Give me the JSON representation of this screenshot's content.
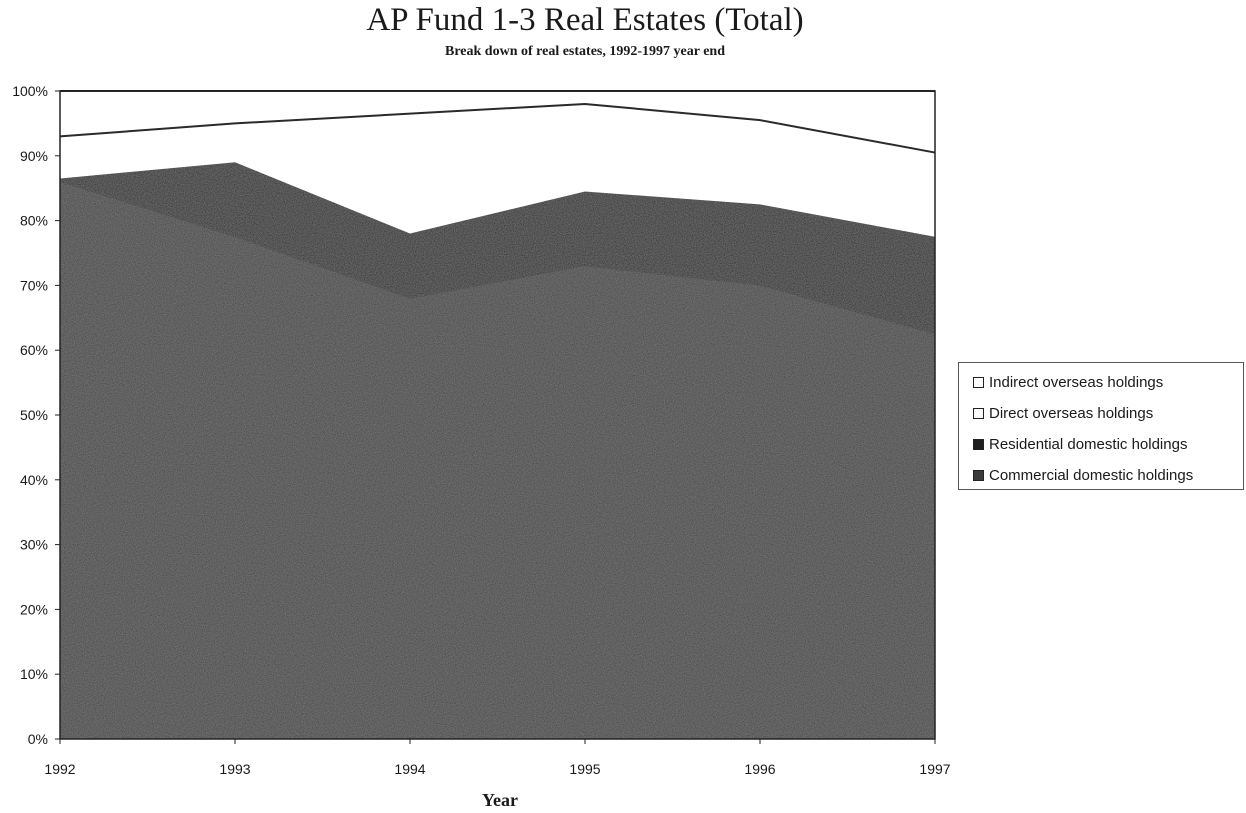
{
  "chart_data": {
    "type": "area",
    "stacked": true,
    "title": "AP Fund 1-3 Real Estates (Total)",
    "subtitle": "Break down of real estates, 1992-1997 year end",
    "xlabel": "Year",
    "ylabel": "",
    "x": [
      "1992",
      "1993",
      "1994",
      "1995",
      "1996",
      "1997"
    ],
    "ylim": [
      0,
      100
    ],
    "yticks": [
      "0%",
      "10%",
      "20%",
      "30%",
      "40%",
      "50%",
      "60%",
      "70%",
      "80%",
      "90%",
      "100%"
    ],
    "grid": false,
    "legend_position": "right",
    "series": [
      {
        "name": "Commercial domestic holdings",
        "values": [
          86,
          77.5,
          68,
          73,
          70,
          62.5
        ],
        "color": "#3a3a3a"
      },
      {
        "name": "Residential domestic holdings",
        "values": [
          0.5,
          11.5,
          10,
          11.5,
          12.5,
          15
        ],
        "color": "#1e1e1e"
      },
      {
        "name": "Direct overseas holdings",
        "values": [
          6.5,
          6,
          18.5,
          13.5,
          13,
          13
        ],
        "color": "#ffffff"
      },
      {
        "name": "Indirect overseas holdings",
        "values": [
          7,
          5,
          3.5,
          2,
          4.5,
          9.5
        ],
        "color": "#ffffff"
      }
    ],
    "legend_order": [
      "Indirect overseas holdings",
      "Direct overseas holdings",
      "Residential domestic holdings",
      "Commercial domestic holdings"
    ]
  }
}
